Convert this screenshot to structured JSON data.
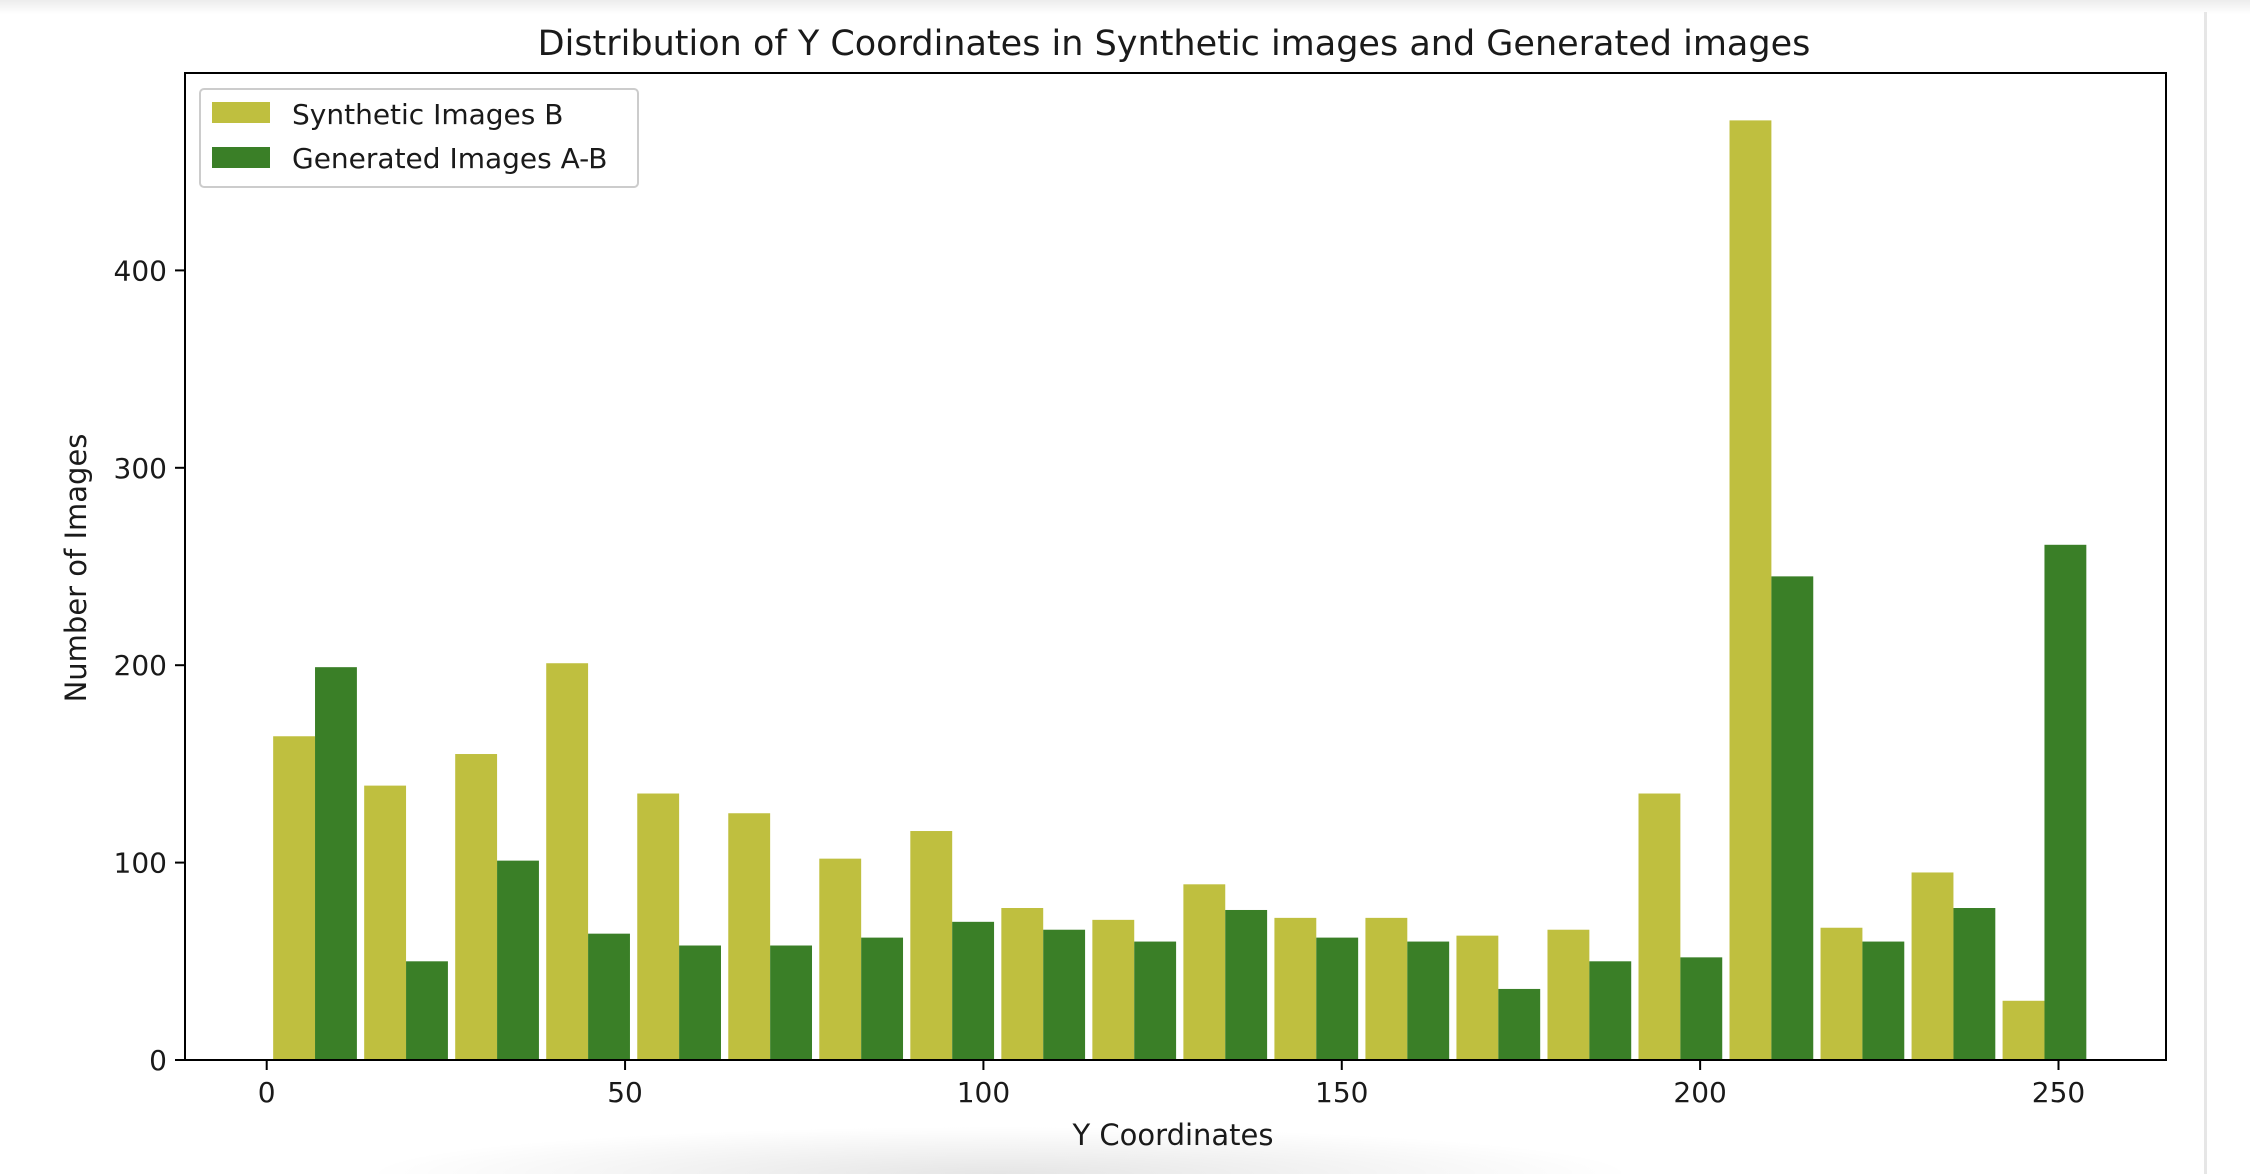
{
  "chart_data": {
    "type": "bar",
    "title": "Distribution of Y Coordinates in Synthetic images and Generated images",
    "xlabel": "Y Coordinates",
    "ylabel": "Number of Images",
    "xlim": [
      -11.4,
      265
    ],
    "ylim": [
      0,
      500
    ],
    "xticks": [
      0,
      50,
      100,
      150,
      200,
      250
    ],
    "yticks": [
      0,
      100,
      200,
      300,
      400
    ],
    "grid": false,
    "legend": "top-left",
    "bin_start": 0.9,
    "bin_width": 12.7,
    "series": [
      {
        "name": "Synthetic Images B",
        "color": "#bfbf3f",
        "values": [
          164,
          139,
          155,
          201,
          135,
          125,
          102,
          116,
          77,
          71,
          89,
          72,
          72,
          63,
          66,
          135,
          476,
          67,
          95,
          30
        ]
      },
      {
        "name": "Generated Images A-B",
        "color": "#3a7f27",
        "values": [
          199,
          50,
          101,
          64,
          58,
          58,
          62,
          70,
          66,
          60,
          76,
          62,
          60,
          36,
          50,
          52,
          245,
          60,
          77,
          261
        ]
      }
    ]
  }
}
